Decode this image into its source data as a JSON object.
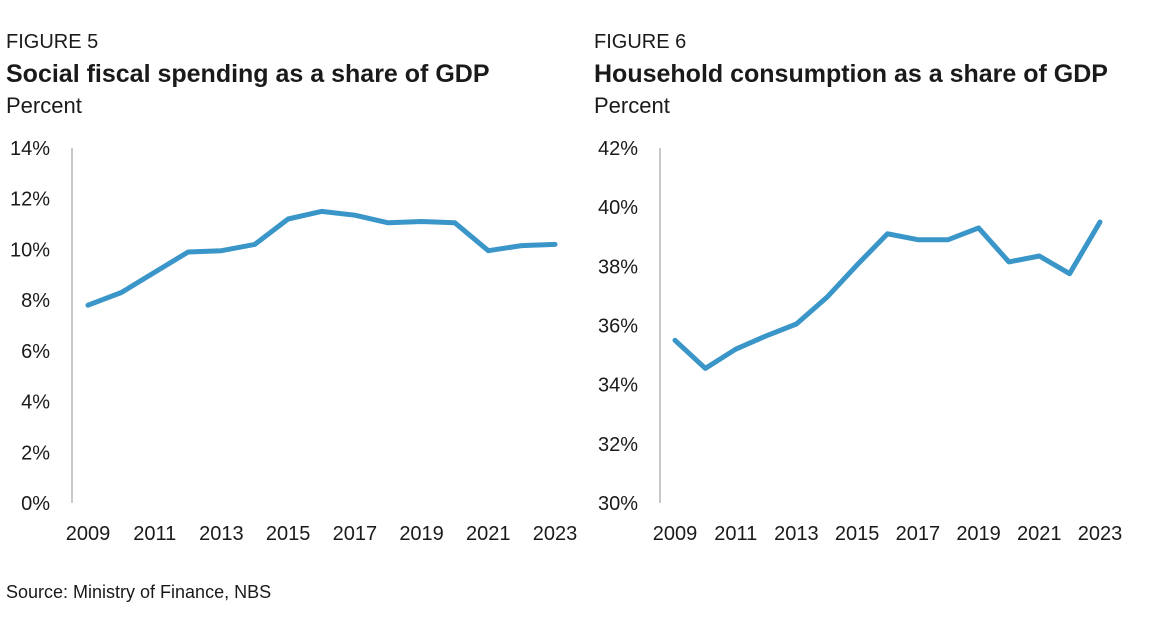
{
  "colors": {
    "line": "#3a96c8",
    "axis": "#c8c8c8",
    "text": "#1a1a1a"
  },
  "source": "Source: Ministry of Finance, NBS",
  "chart_data": [
    {
      "type": "line",
      "figure_label": "FIGURE 5",
      "title": "Social fiscal spending as a share of GDP",
      "unit": "Percent",
      "x": [
        2009,
        2010,
        2011,
        2012,
        2013,
        2014,
        2015,
        2016,
        2017,
        2018,
        2019,
        2020,
        2021,
        2022,
        2023
      ],
      "x_tick_labels": [
        "2009",
        "2011",
        "2013",
        "2015",
        "2017",
        "2019",
        "2021",
        "2023"
      ],
      "series": [
        {
          "values": [
            7.8,
            8.3,
            9.1,
            9.9,
            9.95,
            10.2,
            11.2,
            11.5,
            11.35,
            11.05,
            11.1,
            11.05,
            9.95,
            10.15,
            10.2
          ]
        }
      ],
      "ylim": [
        0,
        14
      ],
      "y_ticks": [
        0,
        2,
        4,
        6,
        8,
        10,
        12,
        14
      ],
      "y_tick_labels": [
        "0%",
        "2%",
        "4%",
        "6%",
        "8%",
        "10%",
        "12%",
        "14%"
      ],
      "grid": false
    },
    {
      "type": "line",
      "figure_label": "FIGURE 6",
      "title": "Household consumption as a share of GDP",
      "unit": "Percent",
      "x": [
        2009,
        2010,
        2011,
        2012,
        2013,
        2014,
        2015,
        2016,
        2017,
        2018,
        2019,
        2020,
        2021,
        2022,
        2023
      ],
      "x_tick_labels": [
        "2009",
        "2011",
        "2013",
        "2015",
        "2017",
        "2019",
        "2021",
        "2023"
      ],
      "series": [
        {
          "values": [
            35.5,
            34.55,
            35.2,
            35.65,
            36.05,
            36.95,
            38.05,
            39.1,
            38.9,
            38.9,
            39.3,
            38.15,
            38.35,
            37.75,
            39.5
          ]
        }
      ],
      "ylim": [
        30,
        42
      ],
      "y_ticks": [
        30,
        32,
        34,
        36,
        38,
        40,
        42
      ],
      "y_tick_labels": [
        "30%",
        "32%",
        "34%",
        "36%",
        "38%",
        "40%",
        "42%"
      ],
      "grid": false
    }
  ]
}
